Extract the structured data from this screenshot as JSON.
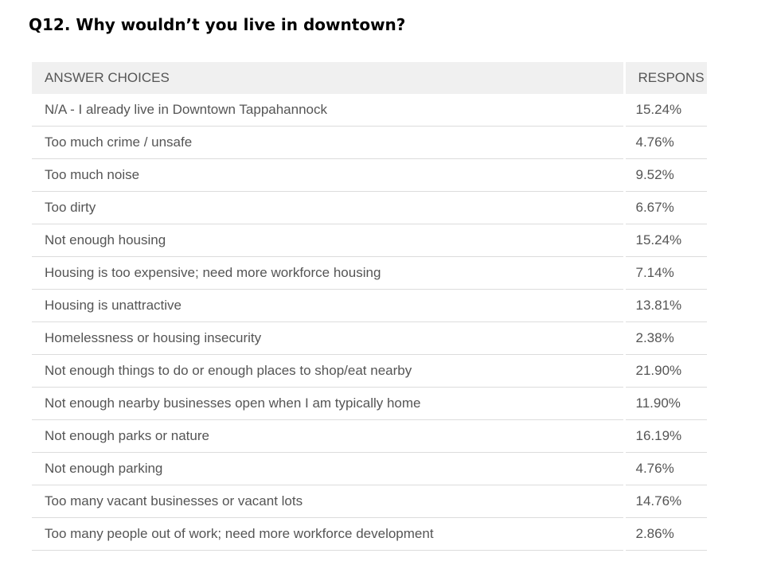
{
  "title": "Q12. Why wouldn’t you live in downtown?",
  "table": {
    "headers": {
      "choice": "ANSWER CHOICES",
      "responses": "RESPONS"
    },
    "rows": [
      {
        "choice": "N/A - I already live in Downtown Tappahannock",
        "pct": "15.24%"
      },
      {
        "choice": "Too much crime / unsafe",
        "pct": "4.76%"
      },
      {
        "choice": "Too much noise",
        "pct": "9.52%"
      },
      {
        "choice": "Too dirty",
        "pct": "6.67%"
      },
      {
        "choice": "Not enough housing",
        "pct": "15.24%"
      },
      {
        "choice": "Housing is too expensive; need more workforce housing",
        "pct": "7.14%"
      },
      {
        "choice": "Housing is unattractive",
        "pct": "13.81%"
      },
      {
        "choice": "Homelessness or housing insecurity",
        "pct": "2.38%"
      },
      {
        "choice": "Not enough things to do or enough places to shop/eat nearby",
        "pct": "21.90%"
      },
      {
        "choice": "Not enough nearby businesses open when I am typically home",
        "pct": "11.90%"
      },
      {
        "choice": "Not enough parks or nature",
        "pct": "16.19%"
      },
      {
        "choice": "Not enough parking",
        "pct": "4.76%"
      },
      {
        "choice": "Too many vacant businesses or vacant lots",
        "pct": "14.76%"
      },
      {
        "choice": "Too many people out of work; need more workforce development",
        "pct": "2.86%"
      }
    ]
  }
}
